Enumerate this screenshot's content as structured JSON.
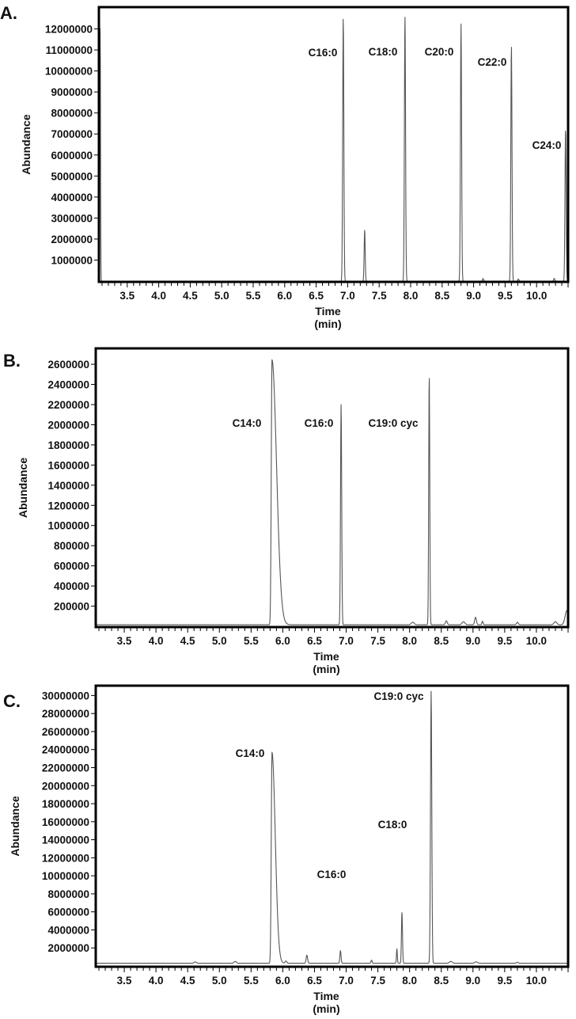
{
  "chart_data": [
    {
      "panel": "A.",
      "type": "line",
      "xlabel": "Time",
      "xlabel_unit": "(min)",
      "ylabel": "Abundance",
      "xlim": [
        3.05,
        10.5
      ],
      "ylim": [
        0,
        13000000
      ],
      "x_ticks": [
        3.5,
        4.0,
        4.5,
        5.0,
        5.5,
        6.0,
        6.5,
        7.0,
        7.5,
        8.0,
        8.5,
        9.0,
        9.5,
        10.0
      ],
      "x_tick_labels": [
        "3.5",
        "4.0",
        "4.5",
        "5.0",
        "5.5",
        "6.0",
        "6.5",
        "7.0",
        "7.5",
        "8.0",
        "8.5",
        "9.0",
        "9.5",
        "10.0"
      ],
      "y_ticks": [
        1000000,
        2000000,
        3000000,
        4000000,
        5000000,
        6000000,
        7000000,
        8000000,
        9000000,
        10000000,
        11000000,
        12000000
      ],
      "y_tick_labels": [
        "1000000",
        "2000000",
        "3000000",
        "4000000",
        "5000000",
        "6000000",
        "7000000",
        "8000000",
        "9000000",
        "10000000",
        "11000000",
        "12000000"
      ],
      "baseline": 0,
      "peaks": [
        {
          "label": "",
          "rt": 3.07,
          "height": 12400000,
          "width": 0.012
        },
        {
          "label": "C16:0",
          "rt": 6.93,
          "height": 12600000,
          "width": 0.02
        },
        {
          "label": "",
          "rt": 7.27,
          "height": 2450000,
          "width": 0.018
        },
        {
          "label": "C18:0",
          "rt": 7.91,
          "height": 12650000,
          "width": 0.02
        },
        {
          "label": "C20:0",
          "rt": 8.8,
          "height": 12250000,
          "width": 0.02
        },
        {
          "label": "",
          "rt": 9.15,
          "height": 120000,
          "width": 0.02
        },
        {
          "label": "C22:0",
          "rt": 9.6,
          "height": 11250000,
          "width": 0.02
        },
        {
          "label": "",
          "rt": 9.71,
          "height": 100000,
          "width": 0.02
        },
        {
          "label": "",
          "rt": 10.28,
          "height": 130000,
          "width": 0.02
        },
        {
          "label": "C24:0",
          "rt": 10.46,
          "height": 7300000,
          "width": 0.02
        }
      ]
    },
    {
      "panel": "B.",
      "type": "line",
      "xlabel": "Time",
      "xlabel_unit": "(min)",
      "ylabel": "Abundance",
      "xlim": [
        3.05,
        10.5
      ],
      "ylim": [
        0,
        2750000
      ],
      "x_ticks": [
        3.5,
        4.0,
        4.5,
        5.0,
        5.5,
        6.0,
        6.5,
        7.0,
        7.5,
        8.0,
        8.5,
        9.0,
        9.5,
        10.0
      ],
      "x_tick_labels": [
        "3.5",
        "4.0",
        "4.5",
        "5.0",
        "5.5",
        "6.0",
        "6.5",
        "7.0",
        "7.5",
        "8.0",
        "8.5",
        "9.0",
        "9.5",
        "10.0"
      ],
      "y_ticks": [
        200000,
        400000,
        600000,
        800000,
        1000000,
        1200000,
        1400000,
        1600000,
        1800000,
        2000000,
        2200000,
        2400000,
        2600000
      ],
      "y_tick_labels": [
        "200000",
        "400000",
        "600000",
        "800000",
        "1000000",
        "1200000",
        "1400000",
        "1600000",
        "1800000",
        "2000000",
        "2200000",
        "2400000",
        "2600000"
      ],
      "baseline": 15000,
      "peaks": [
        {
          "label": "C14:0",
          "rt": 5.83,
          "height": 2630000,
          "width": 0.025,
          "tail": 0.06
        },
        {
          "label": "C16:0",
          "rt": 6.92,
          "height": 2190000,
          "width": 0.02
        },
        {
          "label": "C19:0 cyc",
          "rt": 8.31,
          "height": 2490000,
          "width": 0.018
        },
        {
          "label": "",
          "rt": 8.05,
          "height": 25000,
          "width": 0.05
        },
        {
          "label": "",
          "rt": 8.58,
          "height": 40000,
          "width": 0.03
        },
        {
          "label": "",
          "rt": 8.85,
          "height": 30000,
          "width": 0.05
        },
        {
          "label": "",
          "rt": 9.04,
          "height": 75000,
          "width": 0.03
        },
        {
          "label": "",
          "rt": 9.15,
          "height": 35000,
          "width": 0.02
        },
        {
          "label": "",
          "rt": 9.7,
          "height": 25000,
          "width": 0.03
        },
        {
          "label": "",
          "rt": 10.3,
          "height": 30000,
          "width": 0.05
        },
        {
          "label": "",
          "rt": 10.48,
          "height": 140000,
          "width": 0.06
        }
      ]
    },
    {
      "panel": "C.",
      "type": "line",
      "xlabel": "Time",
      "xlabel_unit": "(min)",
      "ylabel": "Abundance",
      "xlim": [
        3.05,
        10.5
      ],
      "ylim": [
        0,
        31000000
      ],
      "x_ticks": [
        3.5,
        4.0,
        4.5,
        5.0,
        5.5,
        6.0,
        6.5,
        7.0,
        7.5,
        8.0,
        8.5,
        9.0,
        9.5,
        10.0
      ],
      "x_tick_labels": [
        "3.5",
        "4.0",
        "4.5",
        "5.0",
        "5.5",
        "6.0",
        "6.5",
        "7.0",
        "7.5",
        "8.0",
        "8.5",
        "9.0",
        "9.5",
        "10.0"
      ],
      "y_ticks": [
        2000000,
        4000000,
        6000000,
        8000000,
        10000000,
        12000000,
        14000000,
        16000000,
        18000000,
        20000000,
        22000000,
        24000000,
        26000000,
        28000000,
        30000000
      ],
      "y_tick_labels": [
        "2000000",
        "4000000",
        "6000000",
        "8000000",
        "10000000",
        "12000000",
        "14000000",
        "16000000",
        "18000000",
        "20000000",
        "22000000",
        "24000000",
        "26000000",
        "28000000",
        "30000000"
      ],
      "baseline": 300000,
      "peaks": [
        {
          "label": "",
          "rt": 4.62,
          "height": 150000,
          "width": 0.04
        },
        {
          "label": "",
          "rt": 5.25,
          "height": 200000,
          "width": 0.04
        },
        {
          "label": "C14:0",
          "rt": 5.83,
          "height": 23400000,
          "width": 0.025,
          "tail": 0.04
        },
        {
          "label": "",
          "rt": 6.05,
          "height": 250000,
          "width": 0.03
        },
        {
          "label": "",
          "rt": 6.38,
          "height": 900000,
          "width": 0.025
        },
        {
          "label": "C16:0",
          "rt": 6.91,
          "height": 1400000,
          "width": 0.02
        },
        {
          "label": "",
          "rt": 7.4,
          "height": 350000,
          "width": 0.02
        },
        {
          "label": "",
          "rt": 7.8,
          "height": 1600000,
          "width": 0.015
        },
        {
          "label": "C18:0",
          "rt": 7.88,
          "height": 5700000,
          "width": 0.018
        },
        {
          "label": "C19:0 cyc",
          "rt": 8.34,
          "height": 30200000,
          "width": 0.022
        },
        {
          "label": "",
          "rt": 8.65,
          "height": 200000,
          "width": 0.05
        },
        {
          "label": "",
          "rt": 9.05,
          "height": 150000,
          "width": 0.05
        },
        {
          "label": "",
          "rt": 9.7,
          "height": 120000,
          "width": 0.03
        }
      ]
    }
  ]
}
